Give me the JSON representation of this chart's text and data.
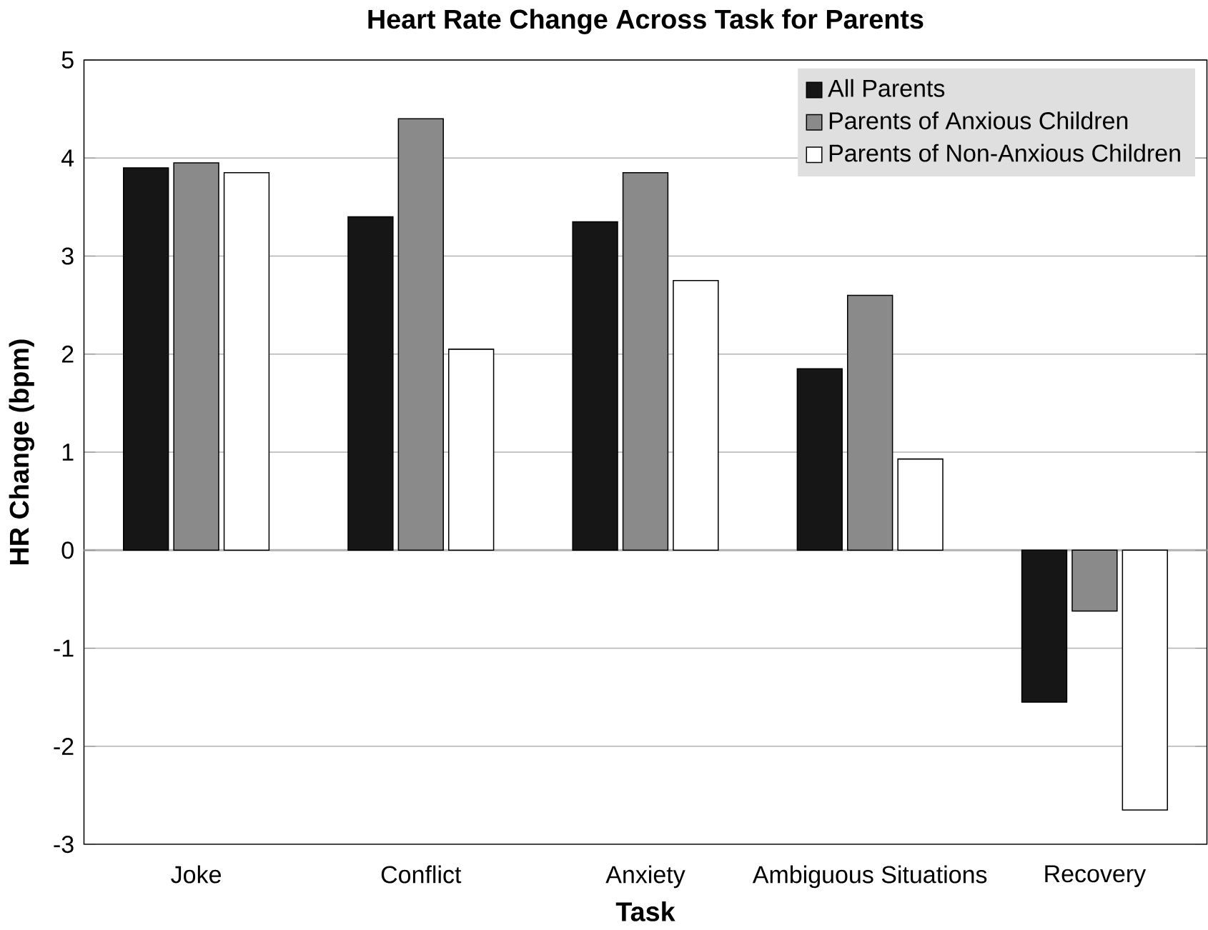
{
  "chart_data": {
    "type": "bar",
    "title": "Heart Rate Change Across Task for Parents",
    "xlabel": "Task",
    "ylabel": "HR Change (bpm)",
    "categories": [
      "Joke",
      "Conflict",
      "Anxiety",
      "Ambiguous Situations",
      "Recovery"
    ],
    "series": [
      {
        "name": "All Parents",
        "color": "#161616",
        "values": [
          3.9,
          3.4,
          3.35,
          1.85,
          -1.55
        ]
      },
      {
        "name": "Parents of Anxious Children",
        "color": "#8a8a8a",
        "values": [
          3.95,
          4.4,
          3.85,
          2.6,
          -0.62
        ]
      },
      {
        "name": "Parents of Non-Anxious Children",
        "color": "#ffffff",
        "values": [
          3.85,
          2.05,
          2.75,
          0.93,
          -2.65
        ]
      }
    ],
    "ylim": [
      -3,
      5
    ],
    "yticks": [
      -3,
      -2,
      -1,
      0,
      1,
      2,
      3,
      4,
      5
    ],
    "grid": "y",
    "legend": "top right"
  }
}
